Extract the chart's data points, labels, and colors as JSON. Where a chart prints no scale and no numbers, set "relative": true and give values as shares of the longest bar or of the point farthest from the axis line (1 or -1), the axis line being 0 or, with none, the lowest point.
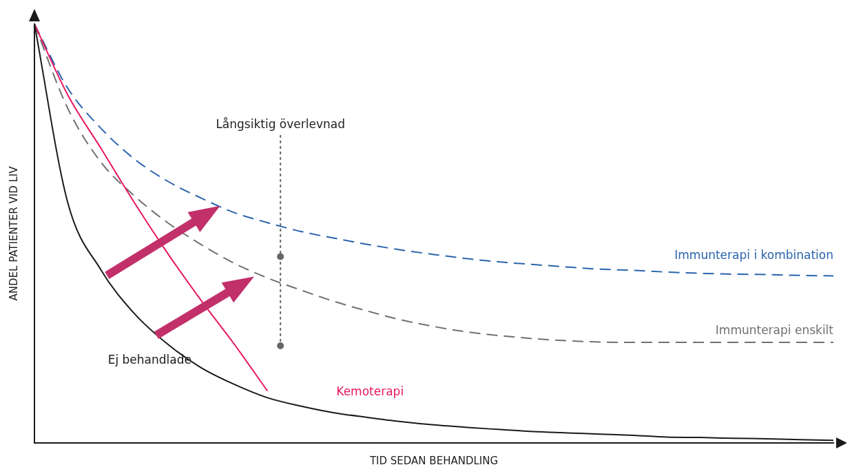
{
  "chart_data": {
    "type": "line",
    "relative": true,
    "xlabel": "TID SEDAN BEHANDLING",
    "ylabel": "ANDEL PATIENTER VID LIV",
    "annotations": [
      "Långsiktig överlevnad"
    ],
    "grid": false,
    "marker": "none",
    "categories": [
      null,
      null,
      null,
      null,
      null,
      null,
      null,
      null,
      null,
      null,
      null,
      null,
      null,
      null,
      null,
      null,
      null,
      null,
      null,
      null,
      null,
      null,
      null,
      null,
      null
    ],
    "series": [
      {
        "name": "Ej behandlade",
        "color": "#1a1a1a",
        "line_style": "solid",
        "values": [
          1.0,
          0.574,
          0.413,
          0.309,
          0.236,
          0.18,
          0.14,
          0.108,
          0.088,
          0.072,
          0.061,
          0.051,
          0.043,
          0.037,
          0.032,
          0.027,
          0.024,
          0.021,
          0.018,
          0.014,
          0.013,
          0.011,
          0.01,
          0.008,
          0.006
        ]
      },
      {
        "name": "Kemoterapi",
        "color": "#e8175d",
        "line_style": "solid",
        "values": [
          1.0,
          0.831,
          0.703,
          0.574,
          0.453,
          0.341,
          0.236,
          0.124,
          null,
          null,
          null,
          null,
          null,
          null,
          null,
          null,
          null,
          null,
          null,
          null,
          null,
          null,
          null,
          null,
          null
        ]
      },
      {
        "name": "Immunterapi i kombination",
        "color": "#2a64ad",
        "line_style": "dashed",
        "values": [
          1.0,
          0.847,
          0.751,
          0.678,
          0.625,
          0.585,
          0.55,
          0.526,
          0.505,
          0.489,
          0.474,
          0.461,
          0.45,
          0.44,
          0.432,
          0.426,
          0.42,
          0.415,
          0.412,
          0.408,
          0.405,
          0.403,
          0.402,
          0.4,
          0.399
        ]
      },
      {
        "name": "Immunterapi enskilt",
        "color": "#707070",
        "line_style": "dashed",
        "values": [
          1.0,
          0.799,
          0.67,
          0.59,
          0.526,
          0.474,
          0.429,
          0.394,
          0.365,
          0.338,
          0.315,
          0.294,
          0.278,
          0.265,
          0.256,
          0.249,
          0.244,
          0.241,
          0.24,
          0.24,
          0.24,
          0.24,
          0.24,
          0.24,
          0.24
        ]
      }
    ]
  }
}
